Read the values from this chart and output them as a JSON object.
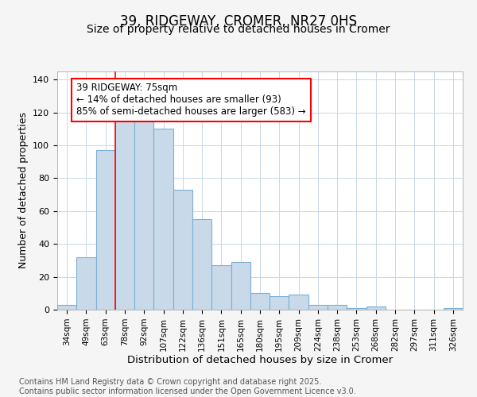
{
  "title": "39, RIDGEWAY, CROMER, NR27 0HS",
  "subtitle": "Size of property relative to detached houses in Cromer",
  "xlabel": "Distribution of detached houses by size in Cromer",
  "ylabel": "Number of detached properties",
  "categories": [
    "34sqm",
    "49sqm",
    "63sqm",
    "78sqm",
    "92sqm",
    "107sqm",
    "122sqm",
    "136sqm",
    "151sqm",
    "165sqm",
    "180sqm",
    "195sqm",
    "209sqm",
    "224sqm",
    "238sqm",
    "253sqm",
    "268sqm",
    "282sqm",
    "297sqm",
    "311sqm",
    "326sqm"
  ],
  "values": [
    3,
    32,
    97,
    115,
    115,
    110,
    73,
    55,
    27,
    29,
    10,
    8,
    9,
    3,
    3,
    1,
    2,
    0,
    0,
    0,
    1
  ],
  "bar_color": "#c8daea",
  "bar_edge_color": "#7ab0d4",
  "annotation_text_line1": "39 RIDGEWAY: 75sqm",
  "annotation_text_line2": "← 14% of detached houses are smaller (93)",
  "annotation_text_line3": "85% of semi-detached houses are larger (583) →",
  "ylim": [
    0,
    145
  ],
  "yticks": [
    0,
    20,
    40,
    60,
    80,
    100,
    120,
    140
  ],
  "footnote": "Contains HM Land Registry data © Crown copyright and database right 2025.\nContains public sector information licensed under the Open Government Licence v3.0.",
  "bg_color": "#f5f5f5",
  "plot_bg_color": "#ffffff",
  "grid_color": "#c8d8e8",
  "title_fontsize": 12,
  "subtitle_fontsize": 10,
  "annotation_fontsize": 8.5,
  "ylabel_fontsize": 9,
  "xlabel_fontsize": 9.5,
  "footnote_fontsize": 7,
  "red_line_bar_index": 3
}
